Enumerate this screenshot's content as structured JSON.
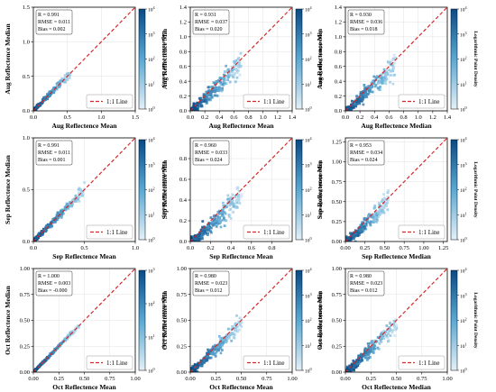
{
  "colors": {
    "density_low": "#e3f0f8",
    "density_mid": "#5aa8d3",
    "density_high": "#084a86",
    "one_to_one_line": "#d62728",
    "grid": "#e6e6e6"
  },
  "colormap": "Blues",
  "colorbar": {
    "label": "Logarithmic Point Density",
    "scale": "log",
    "tick_mantissa": "10",
    "tick_exponents_4": [
      "4",
      "3",
      "2",
      "1",
      "0"
    ],
    "tick_exponents_3": [
      "3",
      "2",
      "1",
      "0"
    ]
  },
  "legend_label": "1:1 Line",
  "legend_position": "lower-right",
  "chart_data": [
    {
      "type": "heatmap",
      "panel": "row1-col1",
      "xlabel": "Aug Reflectence Mean",
      "ylabel": "Aug Reflectence Median",
      "xlim": [
        0,
        1.5
      ],
      "ylim": [
        0,
        1.5
      ],
      "xticks": [
        "0.0",
        "0.5",
        "1.0",
        "1.5"
      ],
      "yticks": [
        "0.0",
        "0.5",
        "1.0",
        "1.5"
      ],
      "stats": [
        "R = 0.991",
        "RMSE = 0.011",
        "Bias = 0.002"
      ],
      "point_cloud": {
        "x_max": 0.55,
        "spread": 0.02,
        "slope": 1.0,
        "bias": 0.002
      },
      "colorbar_max_exp": 4,
      "grid": true
    },
    {
      "type": "heatmap",
      "panel": "row1-col2",
      "xlabel": "Aug Reflectence Mean",
      "ylabel": "Aug Reflectence Min",
      "xlim": [
        0,
        1.4
      ],
      "ylim": [
        0,
        1.4
      ],
      "xticks": [
        "0.0",
        "0.2",
        "0.4",
        "0.6",
        "0.8",
        "1.0",
        "1.2",
        "1.4"
      ],
      "yticks": [
        "0.0",
        "0.2",
        "0.4",
        "0.6",
        "0.8",
        "1.0",
        "1.2",
        "1.4"
      ],
      "stats": [
        "R = 0.931",
        "RMSE = 0.037",
        "Bias = 0.020"
      ],
      "point_cloud": {
        "x_max": 0.7,
        "spread": 0.06,
        "slope": 0.92,
        "bias": -0.02
      },
      "colorbar_max_exp": 4,
      "grid": true
    },
    {
      "type": "heatmap",
      "panel": "row1-col3",
      "xlabel": "Aug Reflectence Median",
      "ylabel": "Aug Reflectence Min",
      "xlim": [
        0,
        1.4
      ],
      "ylim": [
        0,
        1.4
      ],
      "xticks": [
        "0.0",
        "0.2",
        "0.4",
        "0.6",
        "0.8",
        "1.0",
        "1.2",
        "1.4"
      ],
      "yticks": [
        "0.0",
        "0.2",
        "0.4",
        "0.6",
        "0.8",
        "1.0",
        "1.2",
        "1.4"
      ],
      "stats": [
        "R = 0.930",
        "RMSE = 0.036",
        "Bias = 0.018"
      ],
      "point_cloud": {
        "x_max": 0.7,
        "spread": 0.06,
        "slope": 0.92,
        "bias": -0.018
      },
      "colorbar_max_exp": 4,
      "grid": true
    },
    {
      "type": "heatmap",
      "panel": "row2-col1",
      "xlabel": "Sep Reflectence Mean",
      "ylabel": "Sep Reflectence Median",
      "xlim": [
        0,
        1.0
      ],
      "ylim": [
        0,
        1.0
      ],
      "xticks": [
        "0.0",
        "0.5",
        "1.0"
      ],
      "yticks": [
        "0.0",
        "0.5",
        "1.0"
      ],
      "stats": [
        "R = 0.991",
        "RMSE = 0.011",
        "Bias = 0.001"
      ],
      "point_cloud": {
        "x_max": 0.5,
        "spread": 0.02,
        "slope": 1.0,
        "bias": 0.001
      },
      "colorbar_max_exp": 4,
      "grid": true
    },
    {
      "type": "heatmap",
      "panel": "row2-col2",
      "xlabel": "Sep Reflectence Mean",
      "ylabel": "Sep Reflectence Min",
      "xlim": [
        0,
        1.0
      ],
      "ylim": [
        0,
        1.0
      ],
      "xticks": [
        "0.0",
        "0.2",
        "0.4",
        "0.6",
        "0.8"
      ],
      "yticks": [
        "0.0",
        "0.2",
        "0.4",
        "0.6",
        "0.8"
      ],
      "stats": [
        "R = 0.960",
        "RMSE = 0.033",
        "Bias = 0.024"
      ],
      "point_cloud": {
        "x_max": 0.5,
        "spread": 0.05,
        "slope": 0.93,
        "bias": -0.024
      },
      "colorbar_max_exp": 4,
      "grid": true
    },
    {
      "type": "heatmap",
      "panel": "row2-col3",
      "xlabel": "Sep Reflectence Median",
      "ylabel": "Sep Reflectence Min",
      "xlim": [
        0,
        1.3
      ],
      "ylim": [
        0,
        1.3
      ],
      "xticks": [
        "0.00",
        "0.25",
        "0.50",
        "0.75",
        "1.00",
        "1.25"
      ],
      "yticks": [
        "0.00",
        "0.25",
        "0.50",
        "0.75",
        "1.00",
        "1.25"
      ],
      "stats": [
        "R = 0.953",
        "RMSE = 0.034",
        "Bias = 0.024"
      ],
      "point_cloud": {
        "x_max": 0.55,
        "spread": 0.05,
        "slope": 0.93,
        "bias": -0.024
      },
      "colorbar_max_exp": 4,
      "grid": true
    },
    {
      "type": "heatmap",
      "panel": "row3-col1",
      "xlabel": "Oct Reflectence Mean",
      "ylabel": "Oct Reflectence Median",
      "xlim": [
        0,
        1.0
      ],
      "ylim": [
        0,
        1.0
      ],
      "xticks": [
        "0.00",
        "0.25",
        "0.50",
        "0.75",
        "1.00"
      ],
      "yticks": [
        "0.00",
        "0.25",
        "0.50",
        "0.75",
        "1.00"
      ],
      "stats": [
        "R = 1.000",
        "RMSE = 0.003",
        "Bias = -0.000"
      ],
      "point_cloud": {
        "x_max": 0.45,
        "spread": 0.006,
        "slope": 1.0,
        "bias": 0.0
      },
      "colorbar_max_exp": 3,
      "grid": true
    },
    {
      "type": "heatmap",
      "panel": "row3-col2",
      "xlabel": "Oct Reflectence Mean",
      "ylabel": "Oct Reflectence Min",
      "xlim": [
        0,
        1.0
      ],
      "ylim": [
        0,
        1.0
      ],
      "xticks": [
        "0.00",
        "0.25",
        "0.50",
        "0.75",
        "1.00"
      ],
      "yticks": [
        "0.00",
        "0.25",
        "0.50",
        "0.75",
        "1.00"
      ],
      "stats": [
        "R = 0.980",
        "RMSE = 0.023",
        "Bias = 0.012"
      ],
      "point_cloud": {
        "x_max": 0.5,
        "spread": 0.035,
        "slope": 0.96,
        "bias": -0.012
      },
      "colorbar_max_exp": 4,
      "grid": true
    },
    {
      "type": "heatmap",
      "panel": "row3-col3",
      "xlabel": "Oct Reflectence Median",
      "ylabel": "Oct Reflectence Min",
      "xlim": [
        0,
        1.0
      ],
      "ylim": [
        0,
        1.0
      ],
      "xticks": [
        "0.00",
        "0.25",
        "0.50",
        "0.75",
        "1.00"
      ],
      "yticks": [
        "0.00",
        "0.25",
        "0.50",
        "0.75",
        "1.00"
      ],
      "stats": [
        "R = 0.980",
        "RMSE = 0.023",
        "Bias = 0.012"
      ],
      "point_cloud": {
        "x_max": 0.5,
        "spread": 0.035,
        "slope": 0.96,
        "bias": -0.012
      },
      "colorbar_max_exp": 4,
      "grid": true
    }
  ]
}
